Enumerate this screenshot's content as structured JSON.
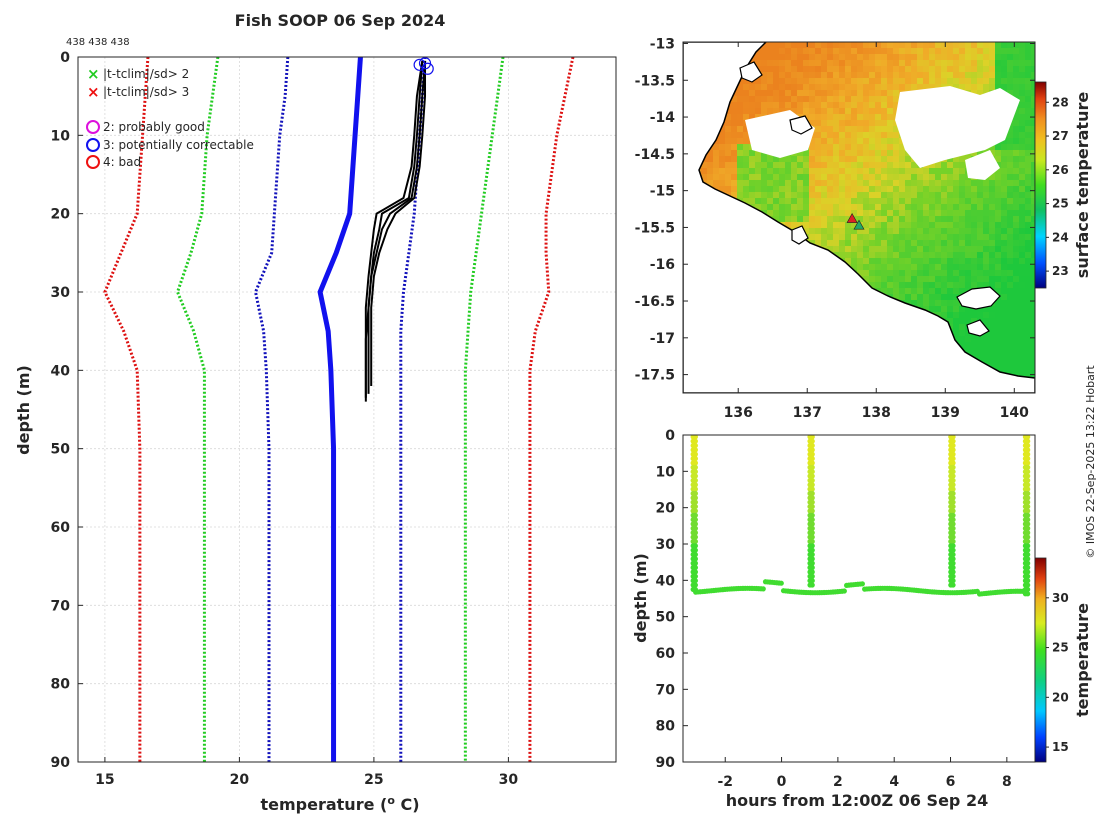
{
  "title": "Fish SOOP 06 Sep 2024",
  "copyright": "© IMOS 22-Sep-2025 13:22 Hobart",
  "chart_data": [
    {
      "id": "profile",
      "type": "line",
      "header_note": "438 438 438",
      "xlabel": "temperature (o C)",
      "xlabel_main": "temperature (",
      "xlabel_sup": "o",
      "xlabel_end": " C)",
      "ylabel": "depth (m)",
      "xlim": [
        14,
        34
      ],
      "ylim": [
        90,
        0
      ],
      "x_ticks": [
        "15",
        "20",
        "25",
        "30"
      ],
      "y_ticks": [
        "0",
        "10",
        "20",
        "30",
        "40",
        "50",
        "60",
        "70",
        "80",
        "90"
      ],
      "grid": true,
      "legend_position": "top-left",
      "legend": [
        {
          "marker": "x",
          "color": "#22cc22",
          "label": "|t-tclim|/sd> 2"
        },
        {
          "marker": "x",
          "color": "#ee1111",
          "label": "|t-tclim|/sd> 3"
        },
        {
          "marker": "o",
          "color": "#dd11dd",
          "label": "2: probably good"
        },
        {
          "marker": "o",
          "color": "#1111ee",
          "label": "3: potentially correctable"
        },
        {
          "marker": "o",
          "color": "#ee1111",
          "label": "4: bad"
        }
      ],
      "climatology": {
        "depths": [
          0,
          5,
          10,
          15,
          20,
          25,
          30,
          35,
          40,
          50,
          60,
          70,
          80,
          90
        ],
        "mean": [
          24.5,
          24.4,
          24.3,
          24.2,
          24.1,
          23.6,
          23.0,
          23.3,
          23.4,
          23.5,
          23.5,
          23.5,
          23.5,
          23.5
        ],
        "minus2": [
          21.8,
          21.7,
          21.5,
          21.4,
          21.3,
          21.2,
          20.6,
          20.9,
          21.0,
          21.1,
          21.1,
          21.1,
          21.1,
          21.1
        ],
        "plus2": [
          26.9,
          26.8,
          26.7,
          26.6,
          26.5,
          26.3,
          26.1,
          26.0,
          26.0,
          26.0,
          26.0,
          26.0,
          26.0,
          26.0
        ],
        "minus4": [
          19.2,
          19.0,
          18.8,
          18.7,
          18.6,
          18.2,
          17.7,
          18.3,
          18.7,
          18.7,
          18.7,
          18.7,
          18.7,
          18.7
        ],
        "plus4": [
          29.8,
          29.6,
          29.4,
          29.2,
          29.0,
          28.8,
          28.6,
          28.5,
          28.4,
          28.4,
          28.4,
          28.4,
          28.4,
          28.4
        ],
        "minus6": [
          16.6,
          16.5,
          16.4,
          16.3,
          16.2,
          15.6,
          15.0,
          15.7,
          16.2,
          16.3,
          16.3,
          16.3,
          16.3,
          16.3
        ],
        "plus6": [
          32.4,
          32.1,
          31.8,
          31.6,
          31.4,
          31.4,
          31.5,
          31.0,
          30.8,
          30.8,
          30.8,
          30.8,
          30.8,
          30.8
        ],
        "colors": {
          "mean": "#1111ee",
          "sd2": "#1111bb",
          "sd4": "#22cc22",
          "sd6": "#dd1111"
        }
      },
      "profiles": [
        {
          "depths": [
            0.5,
            5,
            10,
            14,
            18,
            20,
            22,
            25,
            28,
            32,
            36,
            40,
            43.5
          ],
          "temps": [
            26.8,
            26.7,
            26.6,
            26.5,
            26.3,
            25.3,
            25.2,
            25.0,
            24.9,
            24.8,
            24.7,
            24.7,
            24.7
          ]
        },
        {
          "depths": [
            0.5,
            5,
            10,
            14,
            18,
            20,
            22,
            25,
            28,
            32,
            36,
            40,
            43
          ],
          "temps": [
            26.9,
            26.8,
            26.7,
            26.6,
            26.4,
            25.6,
            25.3,
            25.1,
            24.9,
            24.8,
            24.8,
            24.8,
            24.8
          ]
        },
        {
          "depths": [
            0.5,
            5,
            10,
            14,
            18,
            20,
            22,
            25,
            28,
            32,
            36,
            40,
            44
          ],
          "temps": [
            26.8,
            26.6,
            26.5,
            26.4,
            26.1,
            25.1,
            25.0,
            24.9,
            24.8,
            24.7,
            24.7,
            24.7,
            24.7
          ]
        },
        {
          "depths": [
            0.5,
            5,
            10,
            14,
            18,
            20,
            22,
            25,
            28,
            32,
            36,
            40,
            42
          ],
          "temps": [
            26.9,
            26.9,
            26.8,
            26.7,
            26.5,
            25.8,
            25.5,
            25.2,
            25.0,
            24.9,
            24.9,
            24.9,
            24.9
          ]
        }
      ],
      "flag_points": [
        {
          "t": 26.7,
          "d": 1.0,
          "color": "#1111ee"
        },
        {
          "t": 26.9,
          "d": 0.8,
          "color": "#1111ee"
        },
        {
          "t": 27.0,
          "d": 1.5,
          "color": "#1111ee"
        }
      ]
    },
    {
      "id": "sst_map",
      "type": "heatmap",
      "x_ticks": [
        "136",
        "137",
        "138",
        "139",
        "140"
      ],
      "y_ticks": [
        "-13",
        "-13.5",
        "-14",
        "-14.5",
        "-15",
        "-15.5",
        "-16",
        "-16.5",
        "-17",
        "-17.5"
      ],
      "xlim": [
        135.2,
        140.3
      ],
      "ylim": [
        -17.75,
        -12.98
      ],
      "colorbar_label": "surface temperature",
      "colorbar_ticks": [
        "28",
        "27",
        "26",
        "25",
        "24",
        "23"
      ],
      "colorbar_range": [
        22.5,
        28.6
      ],
      "markers": [
        {
          "lon": 137.65,
          "lat": -15.38,
          "color": "#dd2222",
          "shape": "triangle"
        },
        {
          "lon": 137.75,
          "lat": -15.47,
          "color": "#22aa66",
          "shape": "triangle"
        }
      ]
    },
    {
      "id": "time_depth",
      "type": "scatter",
      "xlabel": "hours from 12:00Z 06 Sep 24",
      "ylabel": "depth (m)",
      "xlim": [
        -3.5,
        9.0
      ],
      "ylim": [
        90,
        0
      ],
      "x_ticks": [
        "-2",
        "0",
        "2",
        "4",
        "6",
        "8"
      ],
      "y_ticks": [
        "0",
        "10",
        "20",
        "30",
        "40",
        "50",
        "60",
        "70",
        "80",
        "90"
      ],
      "colorbar_label": "temperature",
      "colorbar_ticks": [
        "30",
        "25",
        "20",
        "15"
      ],
      "colorbar_range": [
        13.5,
        34
      ],
      "casts": [
        {
          "x_down": -3.1,
          "x_up": 1.0,
          "bottom": 43.5
        },
        {
          "x_down": 1.1,
          "x_up": 5.9,
          "bottom": 42.5
        },
        {
          "x_down": 6.0,
          "x_up": 8.6,
          "bottom": 43.0
        },
        {
          "x_down": 8.6,
          "x_up": 8.7,
          "bottom": 44.0
        }
      ]
    }
  ]
}
